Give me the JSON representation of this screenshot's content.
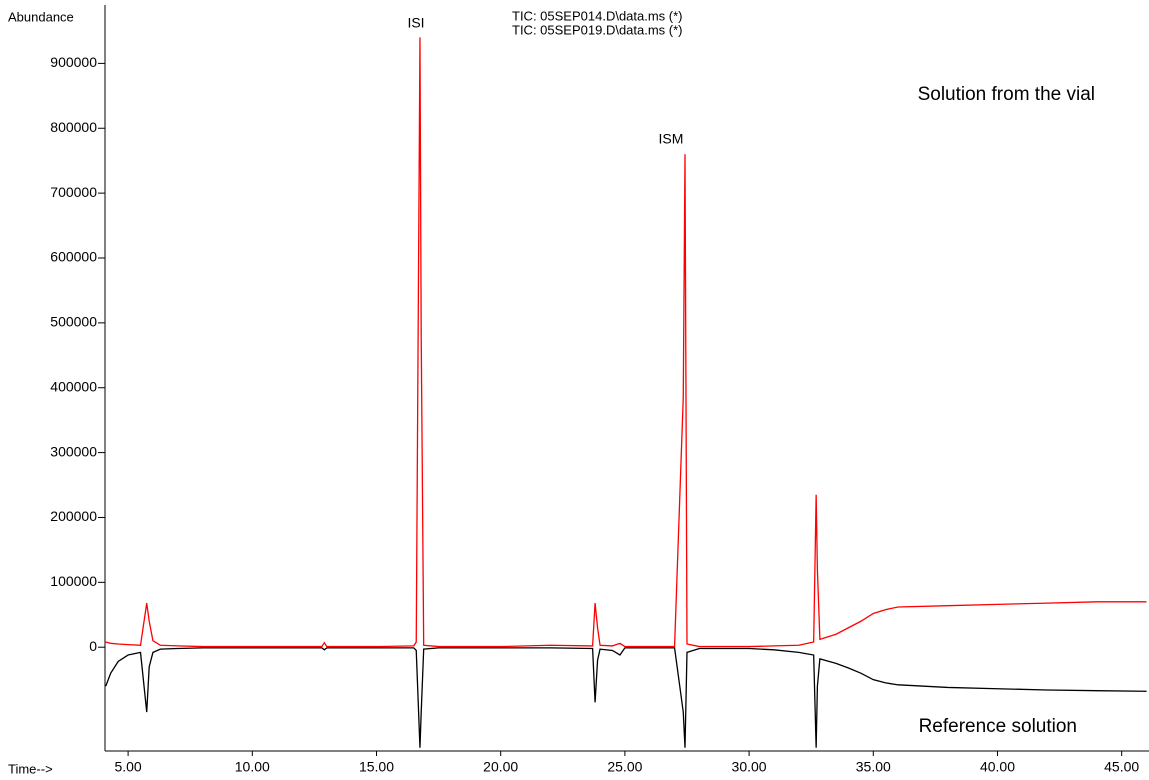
{
  "chart_data": {
    "type": "line",
    "y_label": "Abundance",
    "x_label": "Time-->",
    "x": [
      4.1,
      4.3,
      4.6,
      5.0,
      5.5,
      5.75,
      5.85,
      6.0,
      6.3,
      7,
      8,
      10,
      12.8,
      12.9,
      13.0,
      15,
      16.5,
      16.6,
      16.75,
      16.8,
      16.9,
      17.5,
      20,
      22,
      23.7,
      23.8,
      23.9,
      24.0,
      24.5,
      24.8,
      25.0,
      27,
      27.35,
      27.42,
      27.5,
      28,
      30,
      31,
      32,
      32.6,
      32.7,
      32.75,
      32.85,
      33.5,
      34,
      34.5,
      35,
      35.5,
      36,
      38,
      40,
      42,
      44,
      46
    ],
    "series": [
      {
        "name": "TIC: 05SEP014.D\\data.ms (*)",
        "color": "#000000",
        "values": [
          -60000,
          -40000,
          -22000,
          -12000,
          -8000,
          -100000,
          -30000,
          -8000,
          -3000,
          -2000,
          -1000,
          -1000,
          -1000,
          -4000,
          -1000,
          -1000,
          -1000,
          -5000,
          -155000,
          -100000,
          -3000,
          -1000,
          -1000,
          -1000,
          -2000,
          -85000,
          -20000,
          -3000,
          -5000,
          -12000,
          -1000,
          -1000,
          -100000,
          -155000,
          -8000,
          -2000,
          -2000,
          -4000,
          -8000,
          -12000,
          -155000,
          -60000,
          -18000,
          -25000,
          -32000,
          -40000,
          -50000,
          -55000,
          -58000,
          -62000,
          -64000,
          -66000,
          -67000,
          -68000
        ]
      },
      {
        "name": "TIC: 05SEP019.D\\data.ms (*)",
        "color": "#ff0000",
        "values": [
          8000,
          6000,
          5000,
          4000,
          3000,
          68000,
          40000,
          10000,
          3000,
          2000,
          1000,
          1000,
          1000,
          7000,
          1000,
          1000,
          2000,
          8000,
          940000,
          480000,
          3000,
          1000,
          1000,
          3000,
          2000,
          68000,
          30000,
          3000,
          2000,
          6000,
          1000,
          1000,
          385000,
          760000,
          5000,
          1000,
          1000,
          2000,
          3000,
          8000,
          235000,
          120000,
          12000,
          20000,
          30000,
          40000,
          52000,
          58000,
          62000,
          64000,
          66000,
          68000,
          70000,
          70000
        ]
      }
    ],
    "annotations": [
      "ISI",
      "ISM",
      "Solution from the vial",
      "Reference solution"
    ],
    "xlim": [
      4.07,
      46.1
    ],
    "ylim": [
      -160000,
      990000
    ],
    "xticks": [
      {
        "value": 5,
        "label": "5.00"
      },
      {
        "value": 10,
        "label": "10.00"
      },
      {
        "value": 15,
        "label": "15.00"
      },
      {
        "value": 20,
        "label": "20.00"
      },
      {
        "value": 25,
        "label": "25.00"
      },
      {
        "value": 30,
        "label": "30.00"
      },
      {
        "value": 35,
        "label": "35.00"
      },
      {
        "value": 40,
        "label": "40.00"
      },
      {
        "value": 45,
        "label": "45.00"
      }
    ],
    "yticks": [
      0,
      100000,
      200000,
      300000,
      400000,
      500000,
      600000,
      700000,
      800000,
      900000
    ]
  }
}
